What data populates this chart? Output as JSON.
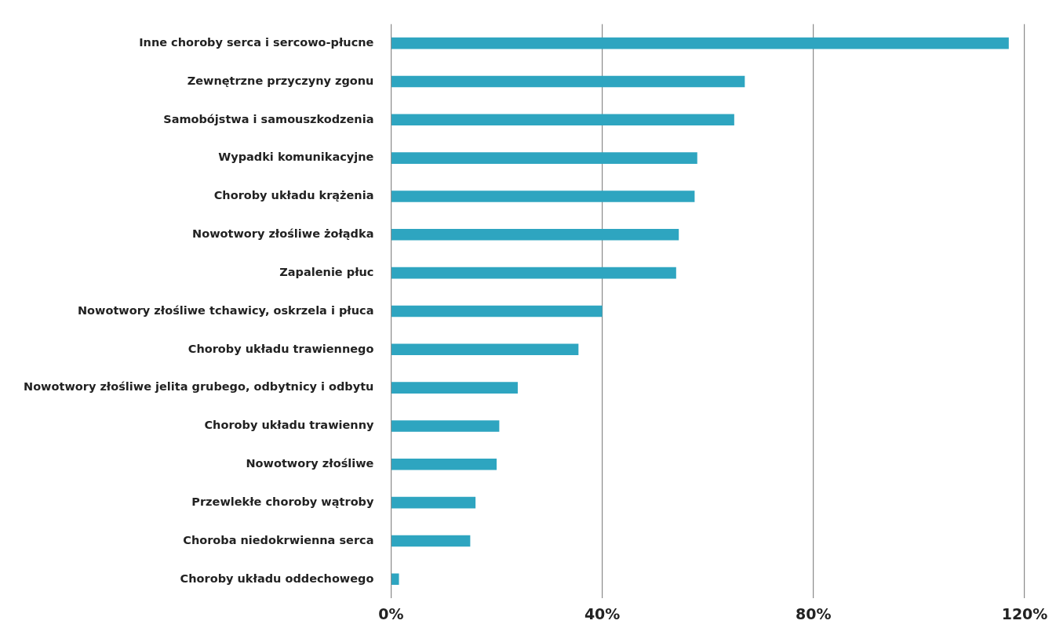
{
  "chart_data": {
    "type": "bar",
    "orientation": "horizontal",
    "categories": [
      "Inne choroby serca i sercowo-płucne",
      "Zewnętrzne przyczyny zgonu",
      "Samobójstwa i samouszkodzenia",
      "Wypadki komunikacyjne",
      "Choroby układu krążenia",
      "Nowotwory złośliwe żołądka",
      "Zapalenie płuc",
      "Nowotwory złośliwe tchawicy, oskrzela i płuca",
      "Choroby układu trawiennego",
      "Nowotwory złośliwe jelita grubego, odbytnicy i odbytu",
      "Choroby układu trawienny",
      "Nowotwory złośliwe",
      "Przewlekłe choroby wątroby",
      "Choroba niedokrwienna serca",
      "Choroby układu oddechowego"
    ],
    "values": [
      117,
      67,
      65,
      58,
      57.5,
      54.5,
      54,
      40,
      35.5,
      24,
      20.5,
      20,
      16,
      15,
      1.5
    ],
    "color": "#2ea5c0",
    "xlim": [
      0,
      120
    ],
    "xticks": [
      {
        "value": 0,
        "label": "0%"
      },
      {
        "value": 40,
        "label": "40%"
      },
      {
        "value": 80,
        "label": "80%"
      },
      {
        "value": 120,
        "label": "120%"
      }
    ],
    "grid": "x",
    "legend": false
  }
}
